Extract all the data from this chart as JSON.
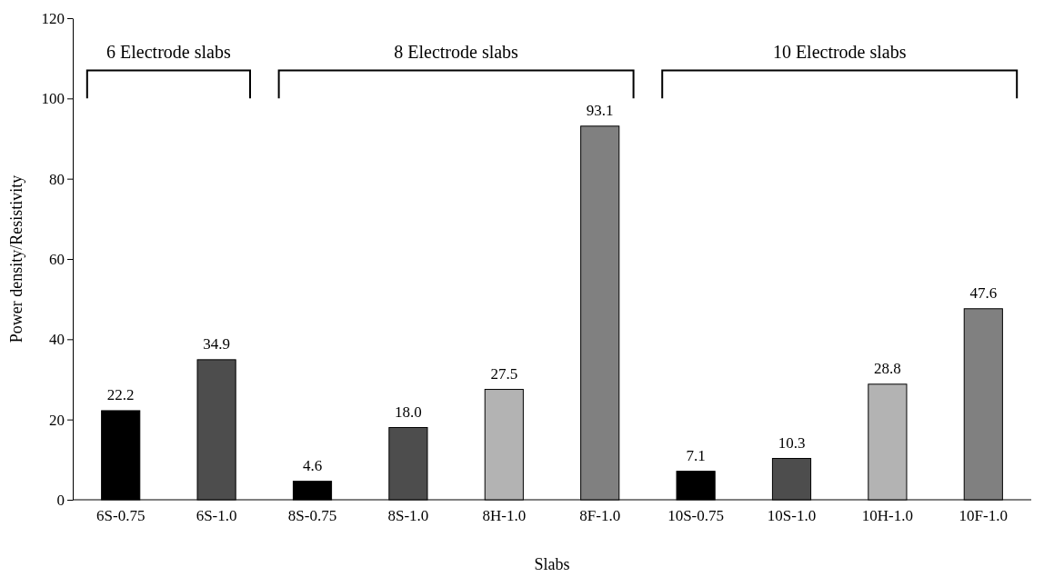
{
  "chart_data": {
    "type": "bar",
    "xlabel": "Slabs",
    "ylabel": "Power density/Resistivity",
    "categories": [
      "6S-0.75",
      "6S-1.0",
      "8S-0.75",
      "8S-1.0",
      "8H-1.0",
      "8F-1.0",
      "10S-0.75",
      "10S-1.0",
      "10H-1.0",
      "10F-1.0"
    ],
    "values": [
      22.2,
      34.9,
      4.6,
      18.0,
      27.5,
      93.1,
      7.1,
      10.3,
      28.8,
      47.6
    ],
    "value_labels": [
      "22.2",
      "34.9",
      "4.6",
      "18.0",
      "27.5",
      "93.1",
      "7.1",
      "10.3",
      "28.8",
      "47.6"
    ],
    "colors": [
      "#000000",
      "#4d4d4d",
      "#000000",
      "#4d4d4d",
      "#b3b3b3",
      "#808080",
      "#000000",
      "#4d4d4d",
      "#b3b3b3",
      "#808080"
    ],
    "ylim": [
      0,
      120
    ],
    "yticks": [
      0,
      20,
      40,
      60,
      80,
      100,
      120
    ],
    "grid": false,
    "annotations": [
      "6 Electrode slabs",
      "8 Electrode slabs",
      "10 Electrode slabs"
    ]
  }
}
